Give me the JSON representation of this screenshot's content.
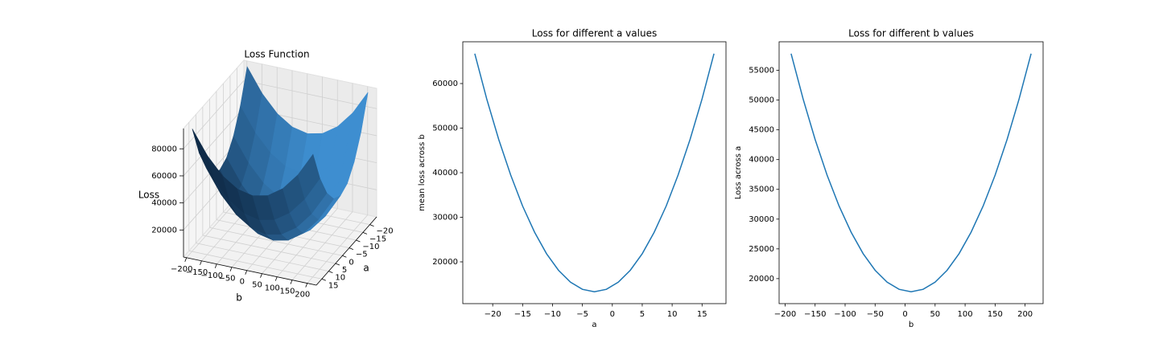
{
  "chart_data": [
    {
      "type": "surface",
      "title": "Loss Function",
      "xlabel": "b",
      "ylabel": "a",
      "zlabel": "Loss",
      "x": [
        -190,
        -140,
        -90,
        -40,
        10,
        60,
        110,
        160,
        210
      ],
      "y": [
        -23,
        -18,
        -13,
        -8,
        -3,
        2,
        7,
        12,
        17
      ],
      "z": [
        [
          93400,
          75900,
          63400,
          55900,
          53400,
          55900,
          63400,
          75900,
          93400
        ],
        [
          70000,
          52500,
          40000,
          32500,
          30000,
          32500,
          40000,
          52500,
          70000
        ],
        [
          53400,
          35900,
          23400,
          15900,
          13400,
          15900,
          23400,
          35900,
          53400
        ],
        [
          43300,
          25800,
          13300,
          5800,
          3300,
          5800,
          13300,
          25800,
          43300
        ],
        [
          40000,
          22500,
          10000,
          2500,
          0,
          2500,
          10000,
          22500,
          40000
        ],
        [
          43300,
          25800,
          13300,
          5800,
          3300,
          5800,
          13300,
          25800,
          43300
        ],
        [
          53400,
          35900,
          23400,
          15900,
          13400,
          15900,
          23400,
          35900,
          53400
        ],
        [
          70000,
          52500,
          40000,
          32500,
          30000,
          32500,
          40000,
          52500,
          70000
        ],
        [
          93400,
          75900,
          63400,
          55900,
          53400,
          55900,
          63400,
          75900,
          93400
        ]
      ],
      "xlim": [
        -210,
        230
      ],
      "ylim": [
        -25,
        19
      ],
      "zlim": [
        0,
        95000
      ],
      "xticks": [
        {
          "value": -200,
          "label": "−200"
        },
        {
          "value": -150,
          "label": "−150"
        },
        {
          "value": -100,
          "label": "−100"
        },
        {
          "value": -50,
          "label": "−50"
        },
        0,
        50,
        100,
        150,
        200
      ],
      "yticks": [
        {
          "value": -20,
          "label": "−20"
        },
        {
          "value": -15,
          "label": "−15"
        },
        {
          "value": -10,
          "label": "−10"
        },
        {
          "value": -5,
          "label": "−5"
        },
        0,
        5,
        10,
        15
      ],
      "zticks": [
        20000,
        40000,
        60000,
        80000
      ],
      "color": "#1f77b4"
    },
    {
      "type": "line",
      "title": "Loss for different a values",
      "xlabel": "a",
      "ylabel": "mean loss across b",
      "x": [
        -23,
        -21,
        -19,
        -17,
        -15,
        -13,
        -11,
        -9,
        -7,
        -5,
        -3,
        -1,
        1,
        3,
        5,
        7,
        9,
        11,
        13,
        15,
        17
      ],
      "values": [
        66700,
        56550,
        47480,
        39470,
        32520,
        26650,
        21840,
        18110,
        15440,
        13830,
        13300,
        13830,
        15440,
        18110,
        21840,
        26650,
        32520,
        39470,
        47480,
        56550,
        66700
      ],
      "color": "#1f77b4",
      "xlim": [
        -25,
        19
      ],
      "ylim": [
        10630,
        69370
      ],
      "xticks": [
        {
          "value": -20,
          "label": "−20"
        },
        {
          "value": -15,
          "label": "−15"
        },
        {
          "value": -10,
          "label": "−10"
        },
        {
          "value": -5,
          "label": "−5"
        },
        0,
        5,
        10,
        15
      ],
      "yticks": [
        20000,
        30000,
        40000,
        50000,
        60000
      ]
    },
    {
      "type": "line",
      "title": "Loss for different b values",
      "xlabel": "b",
      "ylabel": "Loss across a",
      "x": [
        -190,
        -170,
        -150,
        -130,
        -110,
        -90,
        -70,
        -50,
        -30,
        -10,
        10,
        30,
        50,
        70,
        90,
        110,
        130,
        150,
        170,
        190,
        210
      ],
      "values": [
        57800,
        50200,
        43400,
        37400,
        32200,
        27800,
        24200,
        21400,
        19400,
        18200,
        17800,
        18200,
        19400,
        21400,
        24200,
        27800,
        32200,
        37400,
        43400,
        50200,
        57800
      ],
      "color": "#1f77b4",
      "xlim": [
        -210,
        230
      ],
      "ylim": [
        15800,
        59800
      ],
      "xticks": [
        {
          "value": -200,
          "label": "−200"
        },
        {
          "value": -150,
          "label": "−150"
        },
        {
          "value": -100,
          "label": "−100"
        },
        {
          "value": -50,
          "label": "−50"
        },
        0,
        50,
        100,
        150,
        200
      ],
      "yticks": [
        20000,
        25000,
        30000,
        35000,
        40000,
        45000,
        50000,
        55000
      ]
    }
  ]
}
